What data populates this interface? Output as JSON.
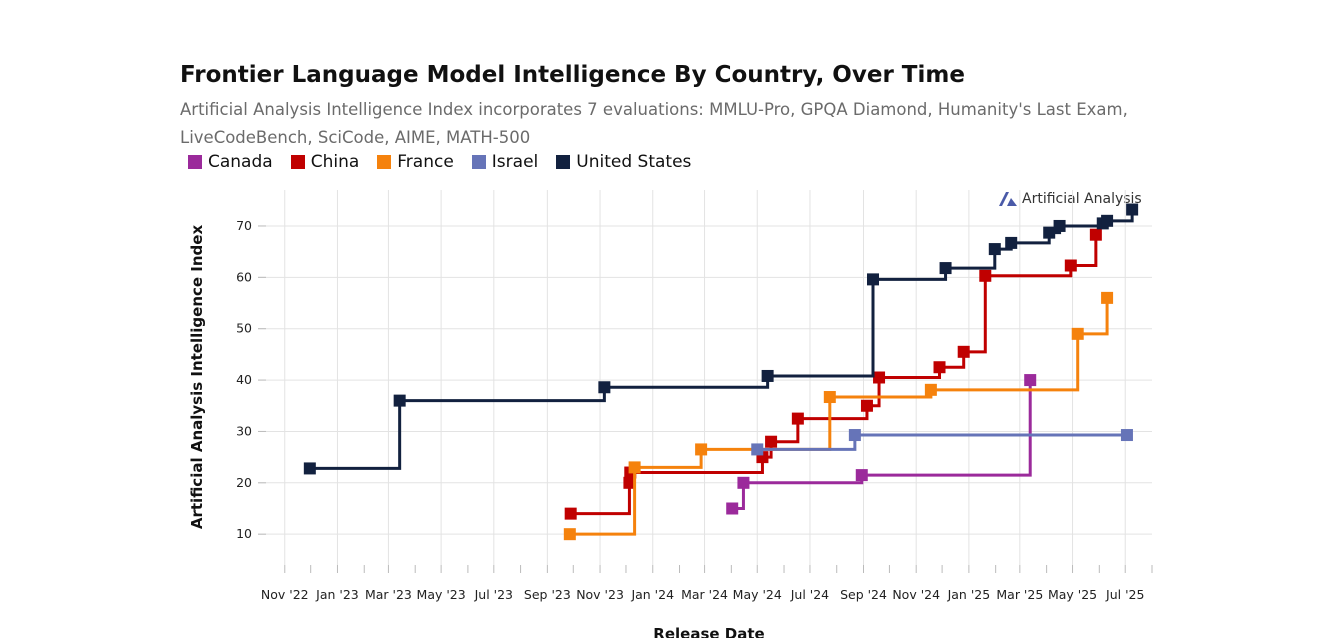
{
  "chart_data": {
    "type": "line",
    "title": "Frontier Language Model Intelligence By Country, Over Time",
    "subtitle": "Artificial Analysis Intelligence Index incorporates 7 evaluations: MMLU-Pro, GPQA Diamond, Humanity's Last Exam, LiveCodeBench, SciCode, AIME, MATH-500",
    "xlabel": "Release Date",
    "ylabel": "Artificial Analysis Intelligence Index",
    "x_ticks": [
      "Nov '22",
      "Jan '23",
      "Mar '23",
      "May '23",
      "Jul '23",
      "Sep '23",
      "Nov '23",
      "Jan '24",
      "Mar '24",
      "May '24",
      "Jul '24",
      "Sep '24",
      "Nov '24",
      "Jan '25",
      "Mar '25",
      "May '25",
      "Jul '25"
    ],
    "y_ticks": [
      10,
      20,
      30,
      40,
      50,
      60,
      70
    ],
    "xlim": [
      "2022-10-01",
      "2025-08-01"
    ],
    "ylim": [
      4,
      77
    ],
    "grid": true,
    "step": true,
    "legend_position": "top-left",
    "brand": "Artificial Analysis",
    "series": [
      {
        "name": "Canada",
        "color": "#9b2a9b",
        "points": [
          {
            "x": "2024-04-02",
            "y": 15
          },
          {
            "x": "2024-04-15",
            "y": 20
          },
          {
            "x": "2024-08-30",
            "y": 21.5
          },
          {
            "x": "2025-03-13",
            "y": 40
          }
        ]
      },
      {
        "name": "China",
        "color": "#c00000",
        "points": [
          {
            "x": "2023-09-28",
            "y": 14
          },
          {
            "x": "2023-12-05",
            "y": 20
          },
          {
            "x": "2023-12-06",
            "y": 22
          },
          {
            "x": "2024-05-07",
            "y": 25
          },
          {
            "x": "2024-05-17",
            "y": 28
          },
          {
            "x": "2024-06-17",
            "y": 32.5
          },
          {
            "x": "2024-09-05",
            "y": 35
          },
          {
            "x": "2024-09-19",
            "y": 40.5
          },
          {
            "x": "2024-11-28",
            "y": 42.5
          },
          {
            "x": "2024-12-26",
            "y": 45.5
          },
          {
            "x": "2025-01-20",
            "y": 60.3
          },
          {
            "x": "2025-04-29",
            "y": 62.3
          },
          {
            "x": "2025-05-28",
            "y": 68.3
          }
        ]
      },
      {
        "name": "France",
        "color": "#f5820d",
        "points": [
          {
            "x": "2023-09-27",
            "y": 10
          },
          {
            "x": "2023-12-11",
            "y": 23
          },
          {
            "x": "2024-02-26",
            "y": 26.5
          },
          {
            "x": "2024-07-24",
            "y": 36.7
          },
          {
            "x": "2024-11-18",
            "y": 38.1
          },
          {
            "x": "2025-05-07",
            "y": 49
          },
          {
            "x": "2025-06-10",
            "y": 56
          }
        ]
      },
      {
        "name": "Israel",
        "color": "#6674b8",
        "points": [
          {
            "x": "2024-05-01",
            "y": 26.5
          },
          {
            "x": "2024-08-22",
            "y": 29.3
          },
          {
            "x": "2025-07-03",
            "y": 29.3
          }
        ]
      },
      {
        "name": "United States",
        "color": "#12213f",
        "points": [
          {
            "x": "2022-11-30",
            "y": 22.8
          },
          {
            "x": "2023-03-14",
            "y": 36
          },
          {
            "x": "2023-11-06",
            "y": 38.6
          },
          {
            "x": "2024-05-13",
            "y": 40.8
          },
          {
            "x": "2024-09-12",
            "y": 59.6
          },
          {
            "x": "2024-12-05",
            "y": 61.8
          },
          {
            "x": "2025-01-31",
            "y": 65.5
          },
          {
            "x": "2025-02-19",
            "y": 66.7
          },
          {
            "x": "2025-04-04",
            "y": 68.7
          },
          {
            "x": "2025-04-16",
            "y": 70
          },
          {
            "x": "2025-06-05",
            "y": 70.5
          },
          {
            "x": "2025-06-10",
            "y": 71
          },
          {
            "x": "2025-07-09",
            "y": 73.2
          }
        ]
      }
    ]
  }
}
